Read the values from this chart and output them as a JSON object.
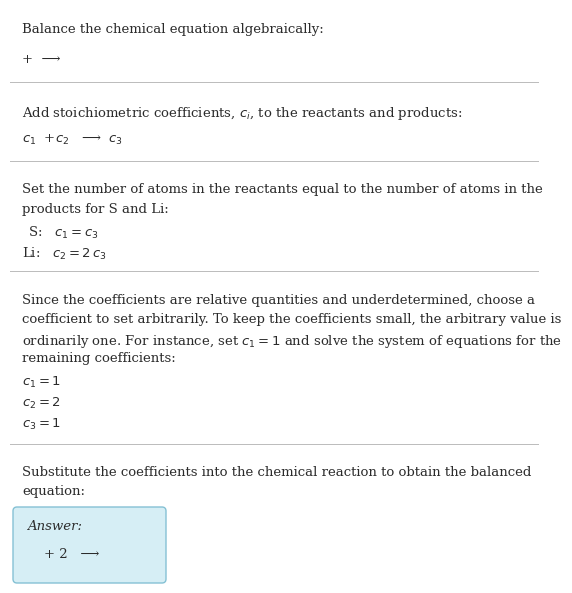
{
  "title": "Balance the chemical equation algebraically:",
  "s1_eq": "+  ⟶",
  "s2_header": "Add stoichiometric coefficients, $c_i$, to the reactants and products:",
  "s2_eq": "$c_1$  +$c_2$   ⟶  $c_3$",
  "s3_header1": "Set the number of atoms in the reactants equal to the number of atoms in the",
  "s3_header2": "products for S and Li:",
  "s3_s": " S:   $c_1 = c_3$",
  "s3_li": "Li:   $c_2 = 2\\,c_3$",
  "s4_header1": "Since the coefficients are relative quantities and underdetermined, choose a",
  "s4_header2": "coefficient to set arbitrarily. To keep the coefficients small, the arbitrary value is",
  "s4_header3": "ordinarily one. For instance, set $c_1 = 1$ and solve the system of equations for the",
  "s4_header4": "remaining coefficients:",
  "s4_c1": "$c_1 = 1$",
  "s4_c2": "$c_2 = 2$",
  "s4_c3": "$c_3 = 1$",
  "s5_header1": "Substitute the coefficients into the chemical reaction to obtain the balanced",
  "s5_header2": "equation:",
  "s5_answer_label": "Answer:",
  "s5_answer": "    + 2   ⟶",
  "bg_color": "#ffffff",
  "text_color": "#2b2b2b",
  "line_color": "#bbbbbb",
  "answer_box_facecolor": "#d6eef5",
  "answer_box_edgecolor": "#85c1d4",
  "font_size": 9.5
}
